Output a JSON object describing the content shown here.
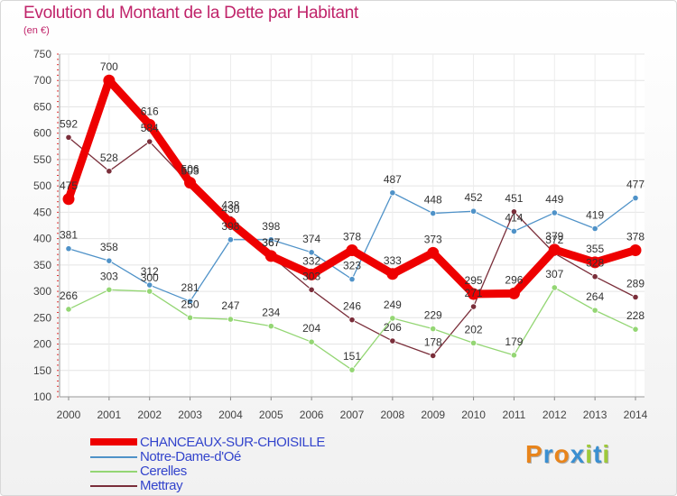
{
  "header": {
    "title": "Evolution du Montant de la Dette par Habitant",
    "subtitle": "(en €)"
  },
  "brand": {
    "letters": [
      "P",
      "r",
      "o",
      "x",
      "i",
      "t",
      "i"
    ],
    "colors": [
      "#e8841b",
      "#3a8fd1",
      "#e8841b",
      "#3a8fd1",
      "#9ec93a",
      "#3a8fd1",
      "#9ec93a"
    ]
  },
  "chart_data": {
    "type": "line",
    "title": "Evolution du Montant de la Dette par Habitant",
    "subtitle": "(en €)",
    "xlabel": "",
    "ylabel": "",
    "x": [
      "2000",
      "2001",
      "2002",
      "2003",
      "2004",
      "2005",
      "2006",
      "2007",
      "2008",
      "2009",
      "2010",
      "2011",
      "2012",
      "2013",
      "2014"
    ],
    "ylim": [
      100,
      750
    ],
    "yticks": [
      100,
      150,
      200,
      250,
      300,
      350,
      400,
      450,
      500,
      550,
      600,
      650,
      700,
      750
    ],
    "grid": true,
    "legend_position": "bottom-left",
    "series": [
      {
        "name": "CHANCEAUX-SUR-CHOISILLE",
        "color": "#ee0000",
        "values": [
          475,
          700,
          616,
          506,
          430,
          367,
          332,
          378,
          333,
          373,
          295,
          296,
          379,
          355,
          378
        ],
        "labels": [
          "475",
          "700",
          "616",
          "506",
          "430",
          "367",
          "332",
          "378",
          "333",
          "373",
          "295",
          "296",
          "379",
          "355",
          "378"
        ]
      },
      {
        "name": "Notre-Dame-d'Oé",
        "color": "#4f92c8",
        "values": [
          381,
          358,
          312,
          281,
          398,
          398,
          374,
          323,
          487,
          448,
          452,
          414,
          449,
          419,
          477
        ],
        "labels": [
          "381",
          "358",
          "312",
          "281",
          "398",
          "398",
          "374",
          "323",
          "487",
          "448",
          "452",
          "414",
          "449",
          "419",
          "477"
        ]
      },
      {
        "name": "Cerelles",
        "color": "#94d674",
        "values": [
          266,
          303,
          300,
          250,
          247,
          234,
          204,
          151,
          249,
          229,
          202,
          179,
          307,
          264,
          228
        ],
        "labels": [
          "266",
          "303",
          "300",
          "250",
          "247",
          "234",
          "204",
          "151",
          "249",
          "229",
          "202",
          "179",
          "307",
          "264",
          "228"
        ]
      },
      {
        "name": "Mettray",
        "color": "#7a2e3a",
        "values": [
          592,
          528,
          584,
          503,
          438,
          367,
          303,
          246,
          206,
          178,
          271,
          451,
          372,
          328,
          289
        ],
        "labels": [
          "592",
          "528",
          "584",
          "503",
          "438",
          "367",
          "303",
          "246",
          "206",
          "178",
          "271",
          "451",
          "372",
          "328",
          "289"
        ]
      }
    ]
  }
}
